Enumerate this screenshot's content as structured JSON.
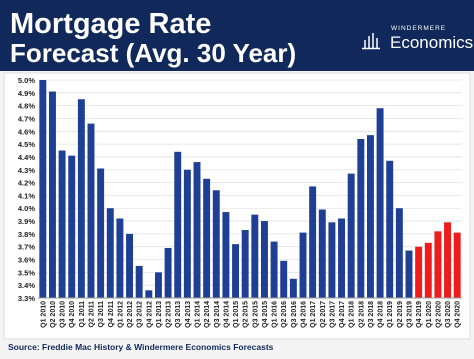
{
  "header": {
    "title_lines": [
      "Mortgage Rate",
      "Forecast (Avg. 30 Year)"
    ],
    "logo": {
      "brand": "WINDERMERE",
      "name": "Economics"
    }
  },
  "chart_data": {
    "type": "bar",
    "categories": [
      "Q1 2010",
      "Q2 2010",
      "Q3 2010",
      "Q4 2010",
      "Q1 2011",
      "Q2 2011",
      "Q3 2011",
      "Q4 2011",
      "Q1 2012",
      "Q2 2012",
      "Q3 2012",
      "Q4 2012",
      "Q1 2013",
      "Q2 2013",
      "Q3 2013",
      "Q4 2013",
      "Q1 2014",
      "Q2 2014",
      "Q3 2014",
      "Q4 2014",
      "Q1 2015",
      "Q2 2015",
      "Q3 2015",
      "Q4 2015",
      "Q1 2016",
      "Q2 2016",
      "Q3 2016",
      "Q4 2016",
      "Q1 2017",
      "Q2 2017",
      "Q3 2017",
      "Q4 2017",
      "Q1 2018",
      "Q2 2018",
      "Q3 2018",
      "Q4 2018",
      "Q1 2019",
      "Q2 2019",
      "Q3 2019",
      "Q4 2019",
      "Q1 2020",
      "Q2 2020",
      "Q3 2020",
      "Q4 2020"
    ],
    "values": [
      5.0,
      4.91,
      4.45,
      4.41,
      4.85,
      4.66,
      4.31,
      4.0,
      3.92,
      3.8,
      3.55,
      3.36,
      3.5,
      3.69,
      4.44,
      4.3,
      4.36,
      4.23,
      4.14,
      3.97,
      3.72,
      3.83,
      3.95,
      3.9,
      3.74,
      3.59,
      3.45,
      3.81,
      4.17,
      3.99,
      3.89,
      3.92,
      4.27,
      4.54,
      4.57,
      4.78,
      4.37,
      4.0,
      3.67,
      3.7,
      3.73,
      3.82,
      3.89,
      3.81
    ],
    "colors": [
      "#1f3f94",
      "#1f3f94",
      "#1f3f94",
      "#1f3f94",
      "#1f3f94",
      "#1f3f94",
      "#1f3f94",
      "#1f3f94",
      "#1f3f94",
      "#1f3f94",
      "#1f3f94",
      "#1f3f94",
      "#1f3f94",
      "#1f3f94",
      "#1f3f94",
      "#1f3f94",
      "#1f3f94",
      "#1f3f94",
      "#1f3f94",
      "#1f3f94",
      "#1f3f94",
      "#1f3f94",
      "#1f3f94",
      "#1f3f94",
      "#1f3f94",
      "#1f3f94",
      "#1f3f94",
      "#1f3f94",
      "#1f3f94",
      "#1f3f94",
      "#1f3f94",
      "#1f3f94",
      "#1f3f94",
      "#1f3f94",
      "#1f3f94",
      "#1f3f94",
      "#1f3f94",
      "#1f3f94",
      "#1f3f94",
      "#ee1c1c",
      "#ee1c1c",
      "#ee1c1c",
      "#ee1c1c",
      "#ee1c1c"
    ],
    "ylim": [
      3.3,
      5.0
    ],
    "yticks": [
      {
        "value": 3.3,
        "label": "3.3%"
      },
      {
        "value": 3.4,
        "label": "3.4%"
      },
      {
        "value": 3.5,
        "label": "3.5%"
      },
      {
        "value": 3.6,
        "label": "3.6%"
      },
      {
        "value": 3.7,
        "label": "3.7%"
      },
      {
        "value": 3.8,
        "label": "3.8%"
      },
      {
        "value": 3.9,
        "label": "3.9%"
      },
      {
        "value": 4.0,
        "label": "4.0%"
      },
      {
        "value": 4.1,
        "label": "4.1%"
      },
      {
        "value": 4.2,
        "label": "4.2%"
      },
      {
        "value": 4.3,
        "label": "4.3%"
      },
      {
        "value": 4.4,
        "label": "4.4%"
      },
      {
        "value": 4.5,
        "label": "4.5%"
      },
      {
        "value": 4.6,
        "label": "4.6%"
      },
      {
        "value": 4.7,
        "label": "4.7%"
      },
      {
        "value": 4.8,
        "label": "4.8%"
      },
      {
        "value": 4.9,
        "label": "4.9%"
      },
      {
        "value": 5.0,
        "label": "5.0%"
      }
    ],
    "grid": true,
    "source": "Source: Freddie Mac History & Windermere Economics Forecasts"
  }
}
